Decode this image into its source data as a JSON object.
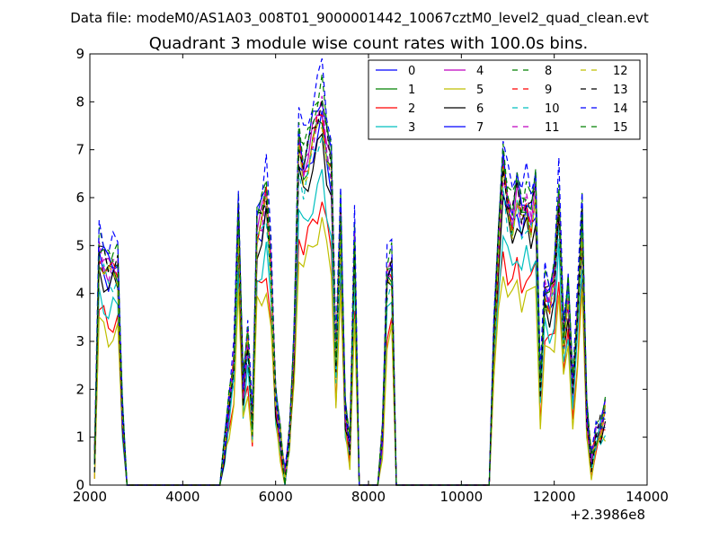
{
  "header": {
    "data_file": "Data file: modeM0/AS1A03_008T01_9000001442_10067cztM0_level2_quad_clean.evt"
  },
  "chart_data": {
    "type": "line",
    "title": "Quadrant 3 module wise count rates with 100.0s bins.",
    "xlabel": "",
    "ylabel": "",
    "x_offset_label": "+2.3986e8",
    "xlim": [
      2000,
      14000
    ],
    "ylim": [
      0,
      9
    ],
    "xticks": [
      2000,
      4000,
      6000,
      8000,
      10000,
      12000,
      14000
    ],
    "xtick_labels": [
      "2000",
      "4000",
      "6000",
      "8000",
      "10000",
      "12000",
      "14000"
    ],
    "yticks": [
      0,
      1,
      2,
      3,
      4,
      5,
      6,
      7,
      8,
      9
    ],
    "ytick_labels": [
      "0",
      "1",
      "2",
      "3",
      "4",
      "5",
      "6",
      "7",
      "8",
      "9"
    ],
    "grid": false,
    "legend_position": "top-right",
    "x": [
      2100,
      2200,
      2300,
      2400,
      2500,
      2600,
      2700,
      2800,
      2900,
      3000,
      3100,
      3200,
      3300,
      3400,
      3500,
      3600,
      3700,
      3800,
      3900,
      4000,
      4100,
      4200,
      4300,
      4400,
      4500,
      4600,
      4700,
      4800,
      4900,
      5000,
      5100,
      5200,
      5300,
      5400,
      5500,
      5600,
      5700,
      5800,
      5900,
      6000,
      6100,
      6200,
      6300,
      6400,
      6500,
      6600,
      6700,
      6800,
      6900,
      7000,
      7100,
      7200,
      7300,
      7400,
      7500,
      7600,
      7700,
      7800,
      7900,
      8000,
      8100,
      8200,
      8300,
      8400,
      8500,
      8600,
      8700,
      8800,
      8900,
      9000,
      9100,
      9200,
      9300,
      9400,
      9500,
      9600,
      9700,
      9800,
      9900,
      10000,
      10100,
      10200,
      10300,
      10400,
      10500,
      10600,
      10700,
      10800,
      10900,
      11000,
      11100,
      11200,
      11300,
      11400,
      11500,
      11600,
      11700,
      11800,
      11900,
      12000,
      12100,
      12200,
      12300,
      12400,
      12500,
      12600,
      12700,
      12800,
      12900,
      13000,
      13100
    ],
    "series": [
      {
        "name": "0",
        "color": "#0000ff",
        "dash": "solid",
        "scale": 0.97
      },
      {
        "name": "1",
        "color": "#008000",
        "dash": "solid",
        "scale": 0.99
      },
      {
        "name": "2",
        "color": "#ff0000",
        "dash": "solid",
        "scale": 0.76
      },
      {
        "name": "3",
        "color": "#00bfbf",
        "dash": "solid",
        "scale": 0.82
      },
      {
        "name": "4",
        "color": "#bf00bf",
        "dash": "solid",
        "scale": 1.02
      },
      {
        "name": "5",
        "color": "#bfbf00",
        "dash": "solid",
        "scale": 0.7
      },
      {
        "name": "6",
        "color": "#000000",
        "dash": "solid",
        "scale": 0.93
      },
      {
        "name": "7",
        "color": "#0000ff",
        "dash": "solid",
        "scale": 1.05
      },
      {
        "name": "8",
        "color": "#008000",
        "dash": "dashed",
        "scale": 1.07
      },
      {
        "name": "9",
        "color": "#ff0000",
        "dash": "dashed",
        "scale": 1.0
      },
      {
        "name": "10",
        "color": "#00bfbf",
        "dash": "dashed",
        "scale": 0.95
      },
      {
        "name": "11",
        "color": "#bf00bf",
        "dash": "dashed",
        "scale": 1.01
      },
      {
        "name": "12",
        "color": "#bfbf00",
        "dash": "dashed",
        "scale": 0.98
      },
      {
        "name": "13",
        "color": "#000000",
        "dash": "dashed",
        "scale": 1.03
      },
      {
        "name": "14",
        "color": "#0000ff",
        "dash": "dashed",
        "scale": 1.12
      },
      {
        "name": "15",
        "color": "#008000",
        "dash": "dashed",
        "scale": 1.06
      }
    ],
    "base_profile": [
      0.5,
      4.8,
      4.6,
      4.4,
      4.5,
      4.5,
      1.5,
      0,
      0,
      0,
      0,
      0,
      0,
      0,
      0,
      0,
      0,
      0,
      0,
      0,
      0,
      0,
      0,
      0,
      0,
      0,
      0,
      0,
      0.8,
      1.7,
      2.5,
      5.5,
      2.0,
      3.0,
      1.2,
      5.3,
      5.5,
      6.0,
      4.5,
      1.8,
      1.0,
      0.1,
      1.0,
      3.0,
      7.0,
      6.5,
      6.8,
      7.2,
      7.5,
      7.8,
      7.0,
      6.5,
      2.5,
      5.5,
      1.5,
      0.8,
      5.0,
      0,
      0,
      0,
      0,
      0,
      1.0,
      4.3,
      4.5,
      0,
      0,
      0,
      0,
      0,
      0,
      0,
      0,
      0,
      0,
      0,
      0,
      0,
      0,
      0,
      0,
      0,
      0,
      0,
      0,
      0,
      3.0,
      5.0,
      6.5,
      5.8,
      5.5,
      6.0,
      5.5,
      5.8,
      5.5,
      6.0,
      2.0,
      4.0,
      3.8,
      4.2,
      5.9,
      3.0,
      4.0,
      2.0,
      3.5,
      5.5,
      1.5,
      0.5,
      1.0,
      1.2,
      1.5,
      2.5,
      0
    ]
  }
}
